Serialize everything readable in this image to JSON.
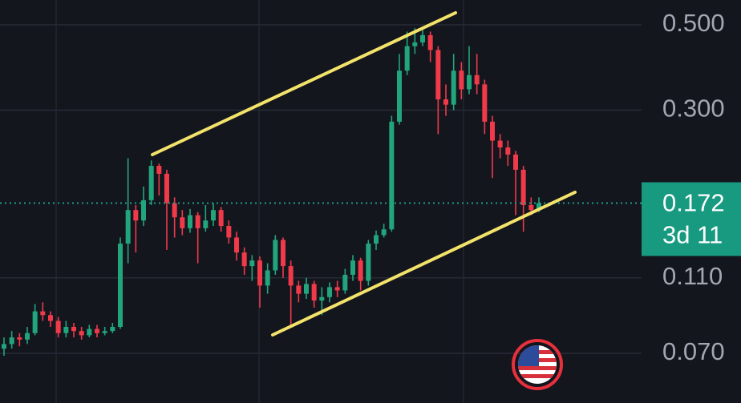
{
  "chart_data": {
    "type": "candlestick",
    "log_scale": true,
    "grid": true,
    "up_color": "#22a57c",
    "down_color": "#f03a4a",
    "ylim": [
      0.052,
      0.58
    ],
    "yticks": [
      {
        "value": 0.5,
        "label": "0.500"
      },
      {
        "value": 0.3,
        "label": "0.300"
      },
      {
        "value": 0.11,
        "label": "0.110"
      },
      {
        "value": 0.07,
        "label": "0.070"
      }
    ],
    "last_price": 0.172,
    "countdown": "3d 11",
    "open": [
      0.072,
      0.074,
      0.077,
      0.076,
      0.079,
      0.09,
      0.088,
      0.085,
      0.079,
      0.082,
      0.08,
      0.078,
      0.081,
      0.079,
      0.08,
      0.082,
      0.135,
      0.165,
      0.155,
      0.175,
      0.215,
      0.205,
      0.172,
      0.158,
      0.148,
      0.16,
      0.148,
      0.155,
      0.165,
      0.15,
      0.14,
      0.128,
      0.118,
      0.122,
      0.105,
      0.115,
      0.138,
      0.118,
      0.105,
      0.1,
      0.106,
      0.096,
      0.098,
      0.104,
      0.102,
      0.112,
      0.122,
      0.108,
      0.135,
      0.142,
      0.147,
      0.28,
      0.38,
      0.44,
      0.45,
      0.47,
      0.43,
      0.32,
      0.31,
      0.38,
      0.34,
      0.37,
      0.35,
      0.28,
      0.25,
      0.24,
      0.23,
      0.21,
      0.17,
      0.165
    ],
    "high": [
      0.077,
      0.08,
      0.079,
      0.082,
      0.094,
      0.095,
      0.09,
      0.087,
      0.085,
      0.084,
      0.082,
      0.083,
      0.083,
      0.082,
      0.084,
      0.14,
      0.225,
      0.17,
      0.19,
      0.222,
      0.218,
      0.21,
      0.178,
      0.165,
      0.166,
      0.163,
      0.17,
      0.172,
      0.168,
      0.155,
      0.145,
      0.132,
      0.126,
      0.125,
      0.12,
      0.142,
      0.14,
      0.122,
      0.108,
      0.11,
      0.108,
      0.104,
      0.107,
      0.108,
      0.116,
      0.126,
      0.124,
      0.138,
      0.146,
      0.152,
      0.29,
      0.42,
      0.48,
      0.49,
      0.495,
      0.48,
      0.44,
      0.35,
      0.42,
      0.4,
      0.44,
      0.42,
      0.36,
      0.29,
      0.26,
      0.25,
      0.235,
      0.215,
      0.178,
      0.178
    ],
    "low": [
      0.069,
      0.072,
      0.073,
      0.074,
      0.078,
      0.085,
      0.082,
      0.077,
      0.077,
      0.077,
      0.076,
      0.077,
      0.077,
      0.078,
      0.079,
      0.081,
      0.12,
      0.128,
      0.15,
      0.17,
      0.18,
      0.13,
      0.14,
      0.142,
      0.144,
      0.12,
      0.145,
      0.15,
      0.145,
      0.135,
      0.122,
      0.112,
      0.108,
      0.092,
      0.1,
      0.112,
      0.11,
      0.083,
      0.095,
      0.097,
      0.092,
      0.088,
      0.095,
      0.098,
      0.1,
      0.108,
      0.102,
      0.105,
      0.13,
      0.14,
      0.145,
      0.275,
      0.37,
      0.42,
      0.44,
      0.4,
      0.26,
      0.29,
      0.3,
      0.32,
      0.33,
      0.33,
      0.26,
      0.2,
      0.225,
      0.215,
      0.16,
      0.145,
      0.16,
      0.163
    ],
    "close": [
      0.074,
      0.077,
      0.076,
      0.079,
      0.09,
      0.088,
      0.085,
      0.079,
      0.082,
      0.08,
      0.078,
      0.081,
      0.079,
      0.08,
      0.082,
      0.135,
      0.165,
      0.155,
      0.175,
      0.215,
      0.205,
      0.172,
      0.158,
      0.148,
      0.16,
      0.148,
      0.155,
      0.165,
      0.15,
      0.14,
      0.128,
      0.118,
      0.122,
      0.105,
      0.115,
      0.138,
      0.118,
      0.105,
      0.1,
      0.106,
      0.096,
      0.098,
      0.104,
      0.102,
      0.112,
      0.122,
      0.108,
      0.135,
      0.142,
      0.147,
      0.28,
      0.38,
      0.44,
      0.45,
      0.47,
      0.43,
      0.32,
      0.31,
      0.38,
      0.34,
      0.37,
      0.35,
      0.28,
      0.25,
      0.24,
      0.23,
      0.21,
      0.17,
      0.165,
      0.172
    ]
  }
}
